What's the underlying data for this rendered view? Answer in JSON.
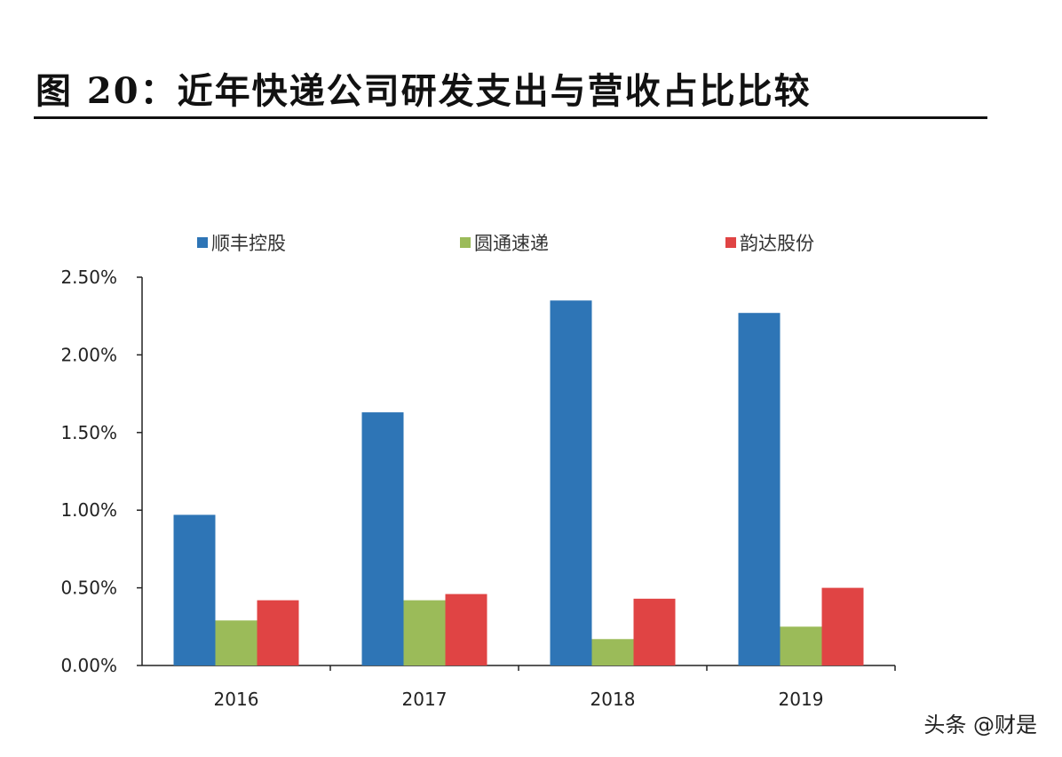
{
  "title": "图 20：近年快递公司研发支出与营收占比比较",
  "watermark": "头条 @财是",
  "chart_data": {
    "type": "bar",
    "categories": [
      "2016",
      "2017",
      "2018",
      "2019"
    ],
    "series": [
      {
        "name": "顺丰控股",
        "color": "#2E75B6",
        "values": [
          0.97,
          1.63,
          2.35,
          2.27
        ]
      },
      {
        "name": "圆通速递",
        "color": "#9BBB59",
        "values": [
          0.29,
          0.42,
          0.17,
          0.25
        ]
      },
      {
        "name": "韵达股份",
        "color": "#E04444",
        "values": [
          0.42,
          0.46,
          0.43,
          0.5
        ]
      }
    ],
    "yticks": [
      "0.00%",
      "0.50%",
      "1.00%",
      "1.50%",
      "2.00%",
      "2.50%"
    ],
    "ylim": [
      0,
      2.5
    ],
    "legend_position": "top",
    "grid": false
  }
}
